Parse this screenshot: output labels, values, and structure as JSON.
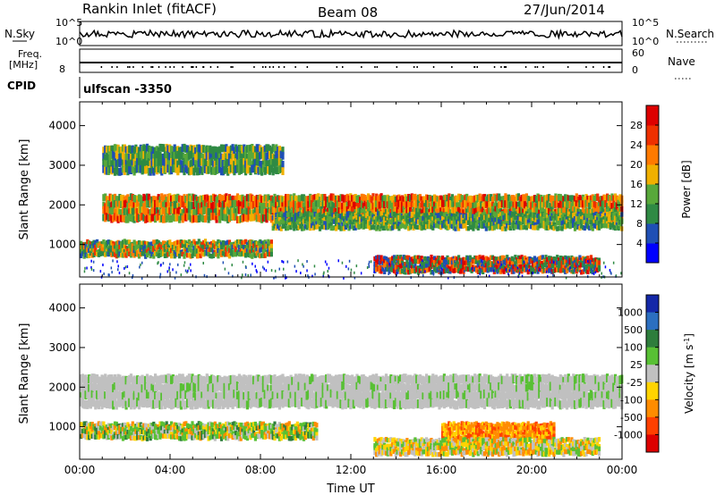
{
  "header": {
    "station": "Rankin Inlet (fitACF)",
    "beam": "Beam 08",
    "date": "27/Jun/2014"
  },
  "top_panels": {
    "nsky_label": "N.Sky",
    "nsearch_label": "N.Search",
    "nsky_ticks": [
      "10^5",
      "10^0"
    ],
    "nsearch_ticks": [
      "10^5",
      "10^0"
    ],
    "freq_label_1": "Freq.",
    "freq_label_2": "[MHz]",
    "freq_tick": "8",
    "nave_label": "Nave",
    "nave_ticks": [
      "60",
      "0"
    ],
    "cpid_label": "CPID",
    "cpid_value": "ulfscan -3350"
  },
  "colors": {
    "power_scale": [
      "#0000ff",
      "#1f4fb5",
      "#2f8a44",
      "#58a83a",
      "#f0b000",
      "#ff7a00",
      "#ee3000",
      "#dd0000"
    ],
    "velocity_scale": [
      "#1428a8",
      "#2c6fc0",
      "#2e7d3c",
      "#58c034",
      "#c0c0c0",
      "#ffd400",
      "#ff8c00",
      "#ff4000",
      "#dd0000"
    ]
  },
  "chart_data": [
    {
      "type": "heatmap",
      "title": "Power",
      "xlabel": "",
      "ylabel": "Slant Range [km]",
      "xlim": [
        "00:00",
        "24:00"
      ],
      "ylim": [
        180,
        4600
      ],
      "yticks": [
        "1000",
        "2000",
        "3000",
        "4000"
      ],
      "xtick_labels": [],
      "colorbar": {
        "label": "Power [dB]",
        "ticks": [
          "4",
          "8",
          "12",
          "16",
          "20",
          "24",
          "28"
        ],
        "range": [
          0,
          32
        ]
      },
      "bands": [
        {
          "name": "upper",
          "x_hours": [
            1.0,
            24.0
          ],
          "range_km": [
            1600,
            2250
          ],
          "value_db": "14-30"
        },
        {
          "name": "lower",
          "x_hours": [
            0.0,
            8.5
          ],
          "range_km": [
            700,
            1100
          ],
          "value_db": "8-28"
        },
        {
          "name": "mid",
          "x_hours": [
            8.5,
            24.0
          ],
          "range_km": [
            1400,
            1800
          ],
          "value_db": "6-18"
        },
        {
          "name": "bottom",
          "x_hours": [
            13.0,
            23.0
          ],
          "range_km": [
            300,
            700
          ],
          "value_db": "8-28"
        },
        {
          "name": "far",
          "x_hours": [
            1.0,
            9.0
          ],
          "range_km": [
            2800,
            3500
          ],
          "value_db": "6-20"
        }
      ]
    },
    {
      "type": "heatmap",
      "title": "Velocity",
      "xlabel": "Time UT",
      "ylabel": "Slant Range [km]",
      "xlim": [
        "00:00",
        "24:00"
      ],
      "ylim": [
        180,
        4600
      ],
      "yticks": [
        "1000",
        "2000",
        "3000",
        "4000"
      ],
      "xtick_labels": [
        "00:00",
        "04:00",
        "08:00",
        "12:00",
        "16:00",
        "20:00",
        "00:00"
      ],
      "colorbar": {
        "label": "Velocity [m s^-1]",
        "ticks": [
          "1000",
          "500",
          "100",
          "25",
          "-25",
          "-100",
          "-500",
          "-1000"
        ]
      },
      "bands": [
        {
          "name": "upper-ground",
          "x_hours": [
            0.0,
            24.0
          ],
          "range_km": [
            1500,
            2300
          ],
          "value_ms": "-25 to 25"
        },
        {
          "name": "lower",
          "x_hours": [
            0.0,
            10.5
          ],
          "range_km": [
            700,
            1100
          ],
          "value_ms": "-500 to 500"
        },
        {
          "name": "evening",
          "x_hours": [
            16.0,
            21.0
          ],
          "range_km": [
            700,
            1100
          ],
          "value_ms": "-500 to -100"
        },
        {
          "name": "bottom",
          "x_hours": [
            13.0,
            23.0
          ],
          "range_km": [
            300,
            700
          ],
          "value_ms": "-100 to 100"
        }
      ]
    }
  ]
}
